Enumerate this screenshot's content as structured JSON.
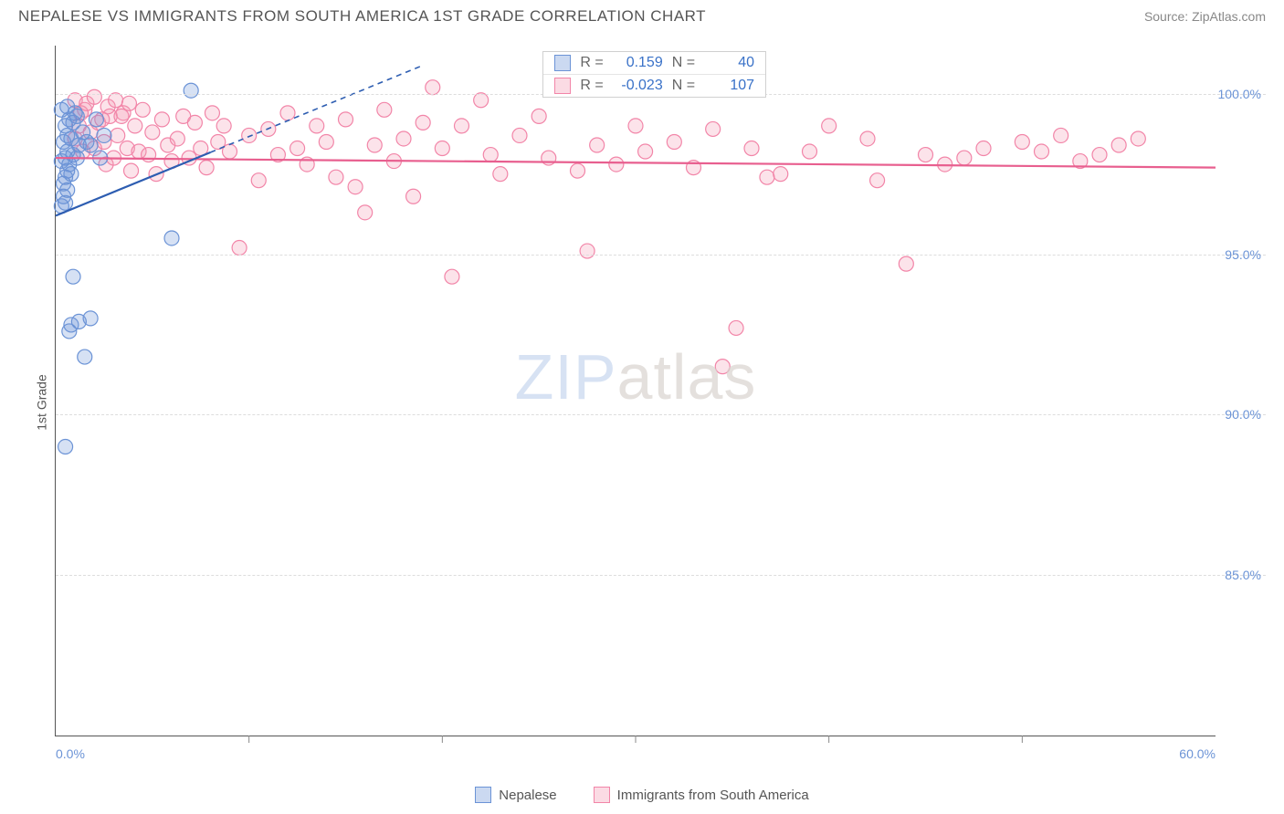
{
  "header": {
    "title": "NEPALESE VS IMMIGRANTS FROM SOUTH AMERICA 1ST GRADE CORRELATION CHART",
    "source": "Source: ZipAtlas.com"
  },
  "chart": {
    "type": "scatter",
    "y_axis_label": "1st Grade",
    "xlim": [
      0,
      60
    ],
    "ylim": [
      80,
      101.5
    ],
    "x_ticks": [
      0,
      10,
      20,
      30,
      40,
      50,
      60
    ],
    "x_tick_labels": [
      "0.0%",
      "",
      "",
      "",
      "",
      "",
      "60.0%"
    ],
    "y_ticks": [
      85,
      90,
      95,
      100
    ],
    "y_tick_labels": [
      "85.0%",
      "90.0%",
      "95.0%",
      "100.0%"
    ],
    "background_color": "#ffffff",
    "grid_color": "#dddddd",
    "axis_color": "#555555",
    "marker_radius": 8,
    "marker_fill_opacity": 0.28,
    "marker_stroke_width": 1.2,
    "series": {
      "blue": {
        "label": "Nepalese",
        "stroke": "#6b93d6",
        "fill": "#6b93d6",
        "trend_color": "#2d5db1",
        "trend_solid_xmax": 8,
        "trend_dash_xmax": 19,
        "trend": {
          "y_at_x0": 96.2,
          "y_at_x60": 111.0
        },
        "R": "0.159",
        "N": "40",
        "points": [
          [
            0.3,
            96.5
          ],
          [
            0.4,
            96.8
          ],
          [
            0.5,
            96.6
          ],
          [
            0.6,
            97.0
          ],
          [
            0.4,
            97.2
          ],
          [
            0.5,
            97.4
          ],
          [
            0.6,
            97.6
          ],
          [
            0.7,
            97.8
          ],
          [
            0.8,
            97.5
          ],
          [
            0.5,
            98.0
          ],
          [
            0.6,
            98.2
          ],
          [
            0.9,
            98.1
          ],
          [
            1.1,
            98.0
          ],
          [
            0.4,
            98.5
          ],
          [
            0.6,
            98.7
          ],
          [
            0.8,
            98.6
          ],
          [
            1.2,
            98.4
          ],
          [
            0.5,
            99.0
          ],
          [
            0.7,
            99.2
          ],
          [
            0.9,
            99.1
          ],
          [
            1.1,
            99.3
          ],
          [
            0.3,
            99.5
          ],
          [
            0.6,
            99.6
          ],
          [
            1.0,
            99.4
          ],
          [
            1.4,
            98.8
          ],
          [
            1.6,
            98.5
          ],
          [
            1.8,
            98.4
          ],
          [
            2.1,
            99.2
          ],
          [
            2.3,
            98.0
          ],
          [
            2.5,
            98.7
          ],
          [
            0.9,
            94.3
          ],
          [
            1.5,
            91.8
          ],
          [
            0.7,
            92.6
          ],
          [
            1.2,
            92.9
          ],
          [
            0.8,
            92.8
          ],
          [
            1.8,
            93.0
          ],
          [
            6.0,
            95.5
          ],
          [
            7.0,
            100.1
          ],
          [
            0.5,
            89.0
          ],
          [
            0.3,
            97.9
          ]
        ]
      },
      "pink": {
        "label": "Immigrants from South America",
        "stroke": "#f285a8",
        "fill": "#f499b3",
        "trend_color": "#e85f8f",
        "trend": {
          "y_at_x0": 98.0,
          "y_at_x60": 97.7
        },
        "R": "-0.023",
        "N": "107",
        "points": [
          [
            1.0,
            98.6
          ],
          [
            1.2,
            99.0
          ],
          [
            1.4,
            98.2
          ],
          [
            1.5,
            99.5
          ],
          [
            1.8,
            98.8
          ],
          [
            2.0,
            98.3
          ],
          [
            2.2,
            99.1
          ],
          [
            2.5,
            98.5
          ],
          [
            2.6,
            97.8
          ],
          [
            2.8,
            99.3
          ],
          [
            3.0,
            98.0
          ],
          [
            3.2,
            98.7
          ],
          [
            3.5,
            99.4
          ],
          [
            3.7,
            98.3
          ],
          [
            3.9,
            97.6
          ],
          [
            4.1,
            99.0
          ],
          [
            4.3,
            98.2
          ],
          [
            4.5,
            99.5
          ],
          [
            4.8,
            98.1
          ],
          [
            5.0,
            98.8
          ],
          [
            5.2,
            97.5
          ],
          [
            5.5,
            99.2
          ],
          [
            5.8,
            98.4
          ],
          [
            6.0,
            97.9
          ],
          [
            6.3,
            98.6
          ],
          [
            6.6,
            99.3
          ],
          [
            6.9,
            98.0
          ],
          [
            7.2,
            99.1
          ],
          [
            7.5,
            98.3
          ],
          [
            7.8,
            97.7
          ],
          [
            8.1,
            99.4
          ],
          [
            8.4,
            98.5
          ],
          [
            8.7,
            99.0
          ],
          [
            9.0,
            98.2
          ],
          [
            9.5,
            95.2
          ],
          [
            10.0,
            98.7
          ],
          [
            10.5,
            97.3
          ],
          [
            11.0,
            98.9
          ],
          [
            11.5,
            98.1
          ],
          [
            12.0,
            99.4
          ],
          [
            12.5,
            98.3
          ],
          [
            13.0,
            97.8
          ],
          [
            13.5,
            99.0
          ],
          [
            14.0,
            98.5
          ],
          [
            14.5,
            97.4
          ],
          [
            15.0,
            99.2
          ],
          [
            15.5,
            97.1
          ],
          [
            16.0,
            96.3
          ],
          [
            16.5,
            98.4
          ],
          [
            17.0,
            99.5
          ],
          [
            17.5,
            97.9
          ],
          [
            18.0,
            98.6
          ],
          [
            18.5,
            96.8
          ],
          [
            19.0,
            99.1
          ],
          [
            19.5,
            100.2
          ],
          [
            20.0,
            98.3
          ],
          [
            20.5,
            94.3
          ],
          [
            21.0,
            99.0
          ],
          [
            22.0,
            99.8
          ],
          [
            22.5,
            98.1
          ],
          [
            23.0,
            97.5
          ],
          [
            24.0,
            98.7
          ],
          [
            25.0,
            99.3
          ],
          [
            25.5,
            98.0
          ],
          [
            26.0,
            100.3
          ],
          [
            27.0,
            97.6
          ],
          [
            27.5,
            95.1
          ],
          [
            28.0,
            98.4
          ],
          [
            29.0,
            97.8
          ],
          [
            30.0,
            99.0
          ],
          [
            30.5,
            98.2
          ],
          [
            31.0,
            100.4
          ],
          [
            32.0,
            98.5
          ],
          [
            33.0,
            97.7
          ],
          [
            33.5,
            100.2
          ],
          [
            34.0,
            98.9
          ],
          [
            34.5,
            91.5
          ],
          [
            35.0,
            100.3
          ],
          [
            35.2,
            92.7
          ],
          [
            36.0,
            98.3
          ],
          [
            36.8,
            97.4
          ],
          [
            37.5,
            97.5
          ],
          [
            39.0,
            98.2
          ],
          [
            40.0,
            99.0
          ],
          [
            42.0,
            98.6
          ],
          [
            42.5,
            97.3
          ],
          [
            44.0,
            94.7
          ],
          [
            45.0,
            98.1
          ],
          [
            46.0,
            97.8
          ],
          [
            47.0,
            98.0
          ],
          [
            48.0,
            98.3
          ],
          [
            50.0,
            98.5
          ],
          [
            51.0,
            98.2
          ],
          [
            52.0,
            98.7
          ],
          [
            53.0,
            97.9
          ],
          [
            54.0,
            98.1
          ],
          [
            55.0,
            98.4
          ],
          [
            56.0,
            98.6
          ],
          [
            1.0,
            99.8
          ],
          [
            1.3,
            99.4
          ],
          [
            1.6,
            99.7
          ],
          [
            2.0,
            99.9
          ],
          [
            2.4,
            99.2
          ],
          [
            2.7,
            99.6
          ],
          [
            3.1,
            99.8
          ],
          [
            3.4,
            99.3
          ],
          [
            3.8,
            99.7
          ]
        ]
      }
    },
    "watermark": {
      "text1": "ZIP",
      "text2": "atlas"
    },
    "bottom_legend": [
      {
        "swatch": "blue",
        "label": "Nepalese"
      },
      {
        "swatch": "pink",
        "label": "Immigrants from South America"
      }
    ],
    "top_legend": [
      {
        "swatch": "blue",
        "R_label": "R =",
        "R": "0.159",
        "N_label": "N =",
        "N": "40"
      },
      {
        "swatch": "pink",
        "R_label": "R =",
        "R": "-0.023",
        "N_label": "N =",
        "N": "107"
      }
    ]
  }
}
